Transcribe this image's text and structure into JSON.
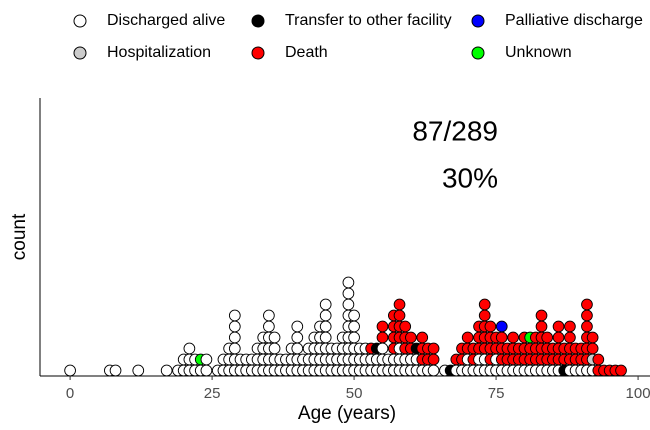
{
  "chart_data": {
    "type": "dotplot",
    "x_label": "Age (years)",
    "y_label": "count",
    "annotations": [
      "87/289",
      "30%"
    ],
    "xlim": [
      -5.3,
      102.1
    ],
    "xticks": [
      0,
      25,
      50,
      75,
      100
    ],
    "x": [
      0,
      7,
      8,
      12,
      17,
      19,
      20,
      21,
      22,
      23,
      24,
      26,
      27,
      28,
      29,
      30,
      31,
      32,
      33,
      34,
      35,
      36,
      37,
      38,
      39,
      40,
      41,
      42,
      43,
      44,
      45,
      46,
      47,
      48,
      49,
      50,
      51,
      52,
      53,
      54,
      55,
      56,
      57,
      58,
      59,
      60,
      61,
      62,
      63,
      64,
      66,
      67,
      68,
      69,
      70,
      71,
      72,
      73,
      74,
      75,
      76,
      77,
      78,
      79,
      80,
      81,
      82,
      83,
      84,
      85,
      86,
      87,
      88,
      89,
      90,
      91,
      92,
      93,
      94,
      95,
      96,
      97
    ],
    "series": [
      {
        "name": "Discharged alive",
        "color": "#ffffff",
        "values": [
          1,
          1,
          1,
          1,
          1,
          1,
          2,
          3,
          2,
          1,
          2,
          1,
          2,
          3,
          6,
          2,
          2,
          2,
          3,
          4,
          6,
          4,
          2,
          2,
          3,
          5,
          2,
          3,
          4,
          5,
          7,
          3,
          3,
          4,
          9,
          6,
          3,
          3,
          2,
          2,
          3,
          2,
          2,
          3,
          2,
          2,
          2,
          1,
          1,
          1,
          1,
          0,
          1,
          1,
          2,
          1,
          2,
          2,
          1,
          2,
          1,
          1,
          1,
          1,
          1,
          1,
          1,
          1,
          1,
          1,
          1,
          0,
          1,
          1,
          1,
          1,
          1,
          0,
          0,
          0,
          0,
          0
        ]
      },
      {
        "name": "Hospitalization",
        "color": "#cccccc",
        "values": [
          0,
          0,
          0,
          0,
          0,
          0,
          0,
          0,
          0,
          0,
          0,
          0,
          0,
          0,
          0,
          0,
          0,
          0,
          0,
          0,
          0,
          0,
          0,
          0,
          0,
          0,
          0,
          0,
          0,
          0,
          0,
          0,
          0,
          0,
          0,
          0,
          0,
          0,
          0,
          0,
          0,
          0,
          0,
          0,
          0,
          0,
          0,
          0,
          0,
          0,
          0,
          0,
          0,
          0,
          0,
          0,
          0,
          0,
          0,
          0,
          0,
          0,
          0,
          0,
          0,
          0,
          0,
          0,
          0,
          0,
          0,
          0,
          0,
          0,
          0,
          0,
          1,
          0,
          0,
          0,
          0,
          0
        ]
      },
      {
        "name": "Transfer to other facility",
        "color": "#000000",
        "values": [
          0,
          0,
          0,
          0,
          0,
          0,
          0,
          0,
          0,
          0,
          0,
          0,
          0,
          0,
          0,
          0,
          0,
          0,
          0,
          0,
          0,
          0,
          0,
          0,
          0,
          0,
          0,
          0,
          0,
          0,
          0,
          0,
          0,
          0,
          0,
          0,
          0,
          0,
          0,
          1,
          0,
          0,
          0,
          0,
          0,
          0,
          1,
          0,
          0,
          0,
          0,
          1,
          0,
          0,
          0,
          0,
          0,
          0,
          0,
          0,
          0,
          0,
          0,
          0,
          0,
          0,
          0,
          0,
          0,
          0,
          0,
          1,
          0,
          0,
          0,
          0,
          0,
          0,
          0,
          0,
          0,
          0
        ]
      },
      {
        "name": "Death",
        "color": "#ff0000",
        "values": [
          0,
          0,
          0,
          0,
          0,
          0,
          0,
          0,
          0,
          0,
          0,
          0,
          0,
          0,
          0,
          0,
          0,
          0,
          0,
          0,
          0,
          0,
          0,
          0,
          0,
          0,
          0,
          0,
          0,
          0,
          0,
          0,
          0,
          0,
          0,
          0,
          0,
          0,
          1,
          0,
          2,
          0,
          4,
          4,
          3,
          2,
          0,
          3,
          2,
          2,
          0,
          0,
          1,
          2,
          2,
          2,
          3,
          5,
          4,
          2,
          3,
          2,
          3,
          2,
          3,
          2,
          3,
          5,
          3,
          2,
          4,
          2,
          4,
          2,
          2,
          6,
          2,
          2,
          1,
          1,
          1,
          1
        ]
      },
      {
        "name": "Palliative discharge",
        "color": "#0000ff",
        "values": [
          0,
          0,
          0,
          0,
          0,
          0,
          0,
          0,
          0,
          0,
          0,
          0,
          0,
          0,
          0,
          0,
          0,
          0,
          0,
          0,
          0,
          0,
          0,
          0,
          0,
          0,
          0,
          0,
          0,
          0,
          0,
          0,
          0,
          0,
          0,
          0,
          0,
          0,
          0,
          0,
          0,
          0,
          0,
          0,
          0,
          0,
          0,
          0,
          0,
          0,
          0,
          0,
          0,
          0,
          0,
          0,
          0,
          0,
          0,
          0,
          1,
          0,
          0,
          0,
          0,
          0,
          0,
          0,
          0,
          0,
          0,
          0,
          0,
          0,
          0,
          0,
          0,
          0,
          0,
          0,
          0,
          0
        ]
      },
      {
        "name": "Unknown",
        "color": "#00ff00",
        "values": [
          0,
          0,
          0,
          0,
          0,
          0,
          0,
          0,
          0,
          1,
          0,
          0,
          0,
          0,
          0,
          0,
          0,
          0,
          0,
          0,
          0,
          0,
          0,
          0,
          0,
          0,
          0,
          0,
          0,
          0,
          0,
          0,
          0,
          0,
          0,
          0,
          0,
          0,
          0,
          0,
          0,
          0,
          0,
          0,
          0,
          0,
          0,
          0,
          0,
          0,
          0,
          0,
          0,
          0,
          0,
          0,
          0,
          0,
          0,
          0,
          0,
          0,
          0,
          0,
          0,
          1,
          0,
          0,
          0,
          0,
          0,
          0,
          0,
          0,
          0,
          0,
          0,
          0,
          0,
          0,
          0,
          0
        ]
      }
    ]
  }
}
